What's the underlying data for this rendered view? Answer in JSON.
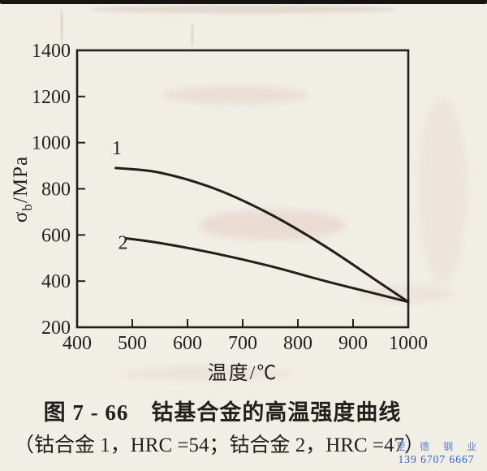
{
  "colors": {
    "ink": "#221f1c",
    "paper": "#f1eee6",
    "watermark_name_blue": "#5b7fd8",
    "watermark_phone_blue": "#2f5ed2"
  },
  "chart_data": {
    "type": "line",
    "title": "钴基合金的高温强度曲线",
    "xlabel": "温度/℃",
    "ylabel": "σb/MPa",
    "ylabel_parts": {
      "symbol": "σ",
      "subscript": "b",
      "unit": "/MPa"
    },
    "xlim": [
      400,
      1000
    ],
    "ylim": [
      200,
      1400
    ],
    "xticks": [
      400,
      500,
      600,
      700,
      800,
      900,
      1000
    ],
    "yticks": [
      200,
      400,
      600,
      800,
      1000,
      1200,
      1400
    ],
    "grid": false,
    "legend_position": "inline-curve-labels",
    "series": [
      {
        "name": "1",
        "alloy": "钴合金1",
        "hrc": 54,
        "x": [
          470,
          550,
          650,
          750,
          850,
          950,
          1000
        ],
        "y": [
          890,
          870,
          800,
          690,
          550,
          390,
          310
        ],
        "label_at": [
          472,
          950
        ]
      },
      {
        "name": "2",
        "alloy": "钴合金2",
        "hrc": 47,
        "x": [
          490,
          550,
          650,
          750,
          850,
          950,
          1000
        ],
        "y": [
          585,
          565,
          520,
          465,
          400,
          340,
          310
        ],
        "label_at": [
          483,
          540
        ]
      }
    ]
  },
  "figure": {
    "caption": "图 7 - 66　钴基合金的高温强度曲线",
    "subcaption": "（钴合金 1，HRC =54；钴合金 2，HRC =47）"
  },
  "watermark": {
    "name": "至 德 钢 业",
    "phone": "139 6707 6667"
  }
}
